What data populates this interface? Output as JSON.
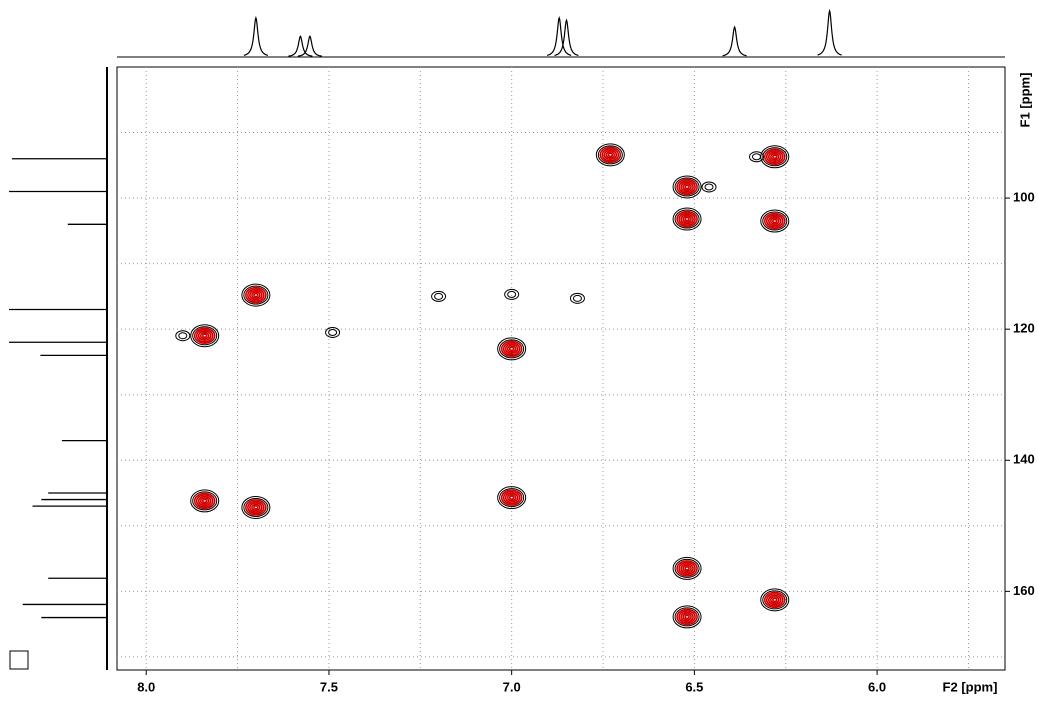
{
  "chart_data": {
    "type": "contour",
    "x_label": "F2 [ppm]",
    "y_label": "F1 [ppm]",
    "xlim": [
      8.08,
      5.65
    ],
    "ylim": [
      80,
      172
    ],
    "xticks": [
      {
        "value": 8,
        "label": "8.0"
      },
      7.5,
      {
        "value": 7,
        "label": "7.0"
      },
      6.5,
      {
        "value": 6,
        "label": "6.0"
      }
    ],
    "yticks": [
      100,
      120,
      140,
      160
    ],
    "xgrid": [
      8,
      7.75,
      7.5,
      7.25,
      7,
      6.75,
      6.5,
      6.25,
      6,
      5.75
    ],
    "ygrid": [
      90,
      100,
      110,
      120,
      130,
      140,
      150,
      160,
      170
    ],
    "peak_color": "#d00000",
    "contour_color": "#000000",
    "peaks": {
      "x": [
        6.73,
        6.52,
        6.52,
        6.52,
        6.52,
        6.28,
        6.28,
        6.28,
        7.7,
        7.7,
        7.84,
        7.84,
        7.0,
        7.0
      ],
      "y": [
        93.4,
        98.3,
        103.2,
        156.5,
        163.9,
        93.7,
        103.5,
        161.3,
        114.8,
        147.2,
        121,
        146.2,
        123,
        145.7
      ]
    },
    "weak_peaks": {
      "x": [
        6.33,
        7.49,
        7.2,
        7.0,
        6.82,
        7.9,
        6.46
      ],
      "y": [
        93.7,
        120.5,
        115,
        114.7,
        115.3,
        121,
        98.3
      ]
    },
    "f2_projection": {
      "x": [
        7.7,
        7.578,
        7.552,
        6.87,
        6.85,
        6.39,
        6.13
      ],
      "values": [
        85,
        45,
        45,
        85,
        80,
        65,
        100
      ]
    },
    "f1_projection": {
      "y": [
        94,
        99,
        104,
        117,
        122,
        124,
        137,
        145,
        146,
        147,
        158,
        162,
        164
      ],
      "values": [
        97,
        100,
        40,
        100,
        100,
        68,
        46,
        60,
        67,
        76,
        60,
        86,
        67
      ]
    }
  }
}
